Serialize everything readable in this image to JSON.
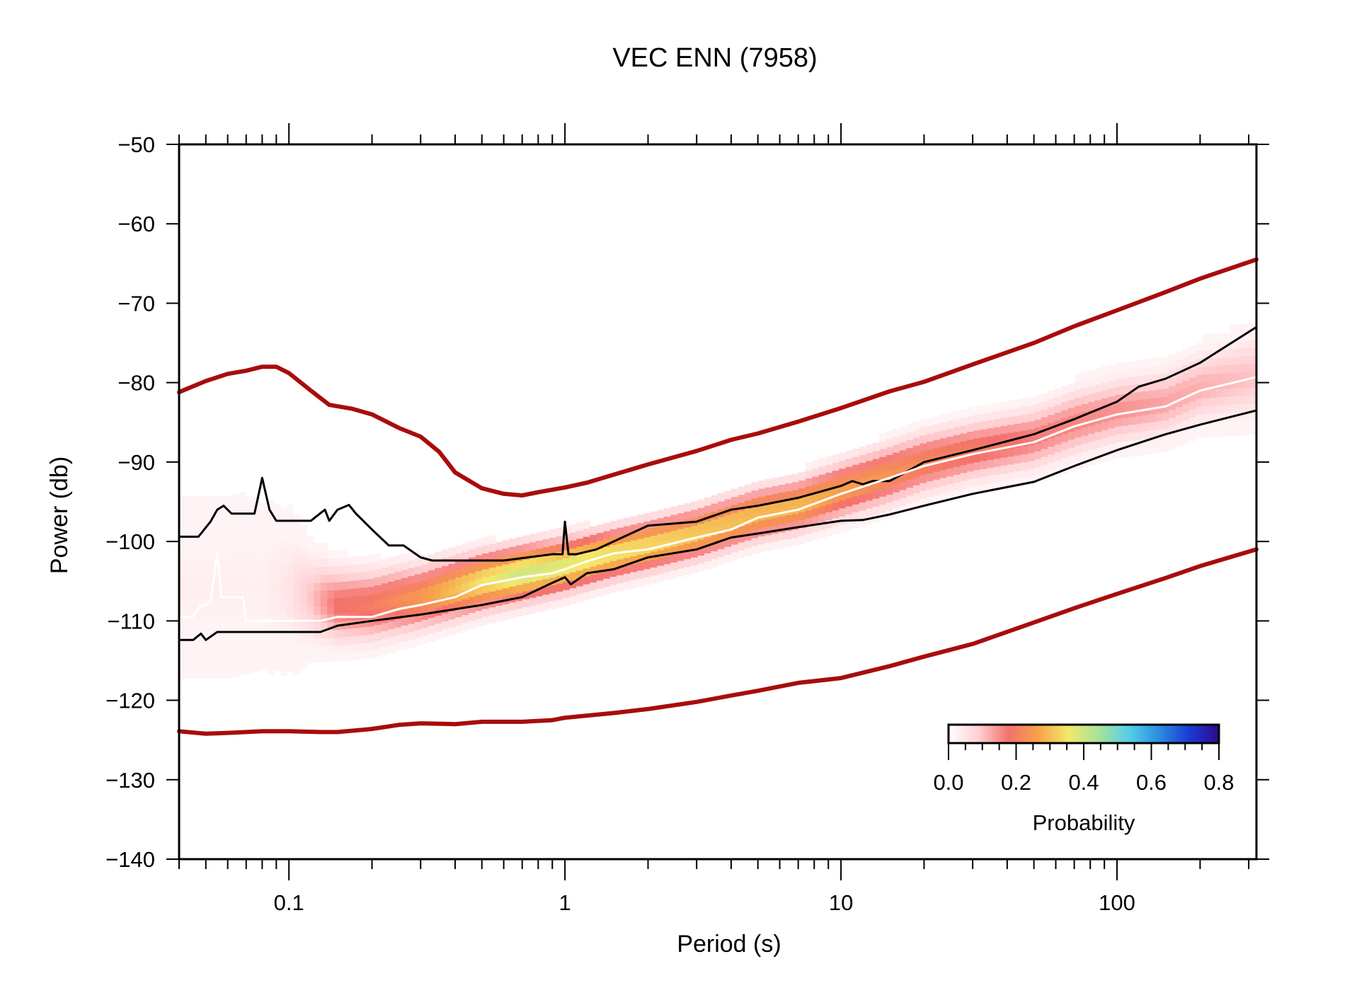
{
  "chart_data": {
    "type": "heatmap",
    "title": "VEC ENN (7958)",
    "xlabel": "Period (s)",
    "ylabel": "Power (db)",
    "xscale": "log",
    "xlim": [
      0.04,
      320
    ],
    "ylim": [
      -140,
      -50
    ],
    "x_ticks": [
      0.1,
      1,
      10,
      100
    ],
    "x_tick_labels": [
      "0.1",
      "1",
      "10",
      "100"
    ],
    "y_ticks": [
      -50,
      -60,
      -70,
      -80,
      -90,
      -100,
      -110,
      -120,
      -130,
      -140
    ],
    "y_tick_labels": [
      "−50",
      "−60",
      "−70",
      "−80",
      "−90",
      "−100",
      "−110",
      "−120",
      "−130",
      "−140"
    ],
    "grid": false,
    "colorbar": {
      "label": "Probability",
      "range": [
        0,
        0.8
      ],
      "ticks": [
        "0.0",
        "0.2",
        "0.4",
        "0.6",
        "0.8"
      ],
      "placement": "bottom-right",
      "colors": [
        "#ffffff",
        "#ffd0d4",
        "#f4716c",
        "#f7a34a",
        "#f4e86a",
        "#a6e39a",
        "#54cfe8",
        "#2b8de0",
        "#1b3bd4",
        "#2a0a8e"
      ]
    },
    "series": [
      {
        "role": "noise-model-high",
        "color": "#a80c0c",
        "x": [
          0.04,
          0.05,
          0.06,
          0.07,
          0.08,
          0.09,
          0.1,
          0.12,
          0.14,
          0.17,
          0.2,
          0.25,
          0.3,
          0.35,
          0.4,
          0.5,
          0.6,
          0.7,
          0.8,
          1,
          1.2,
          1.5,
          2,
          3,
          4,
          5,
          7,
          10,
          15,
          20,
          30,
          50,
          70,
          100,
          150,
          200,
          320
        ],
        "y": [
          -81.2,
          -79.8,
          -78.9,
          -78.5,
          -78.0,
          -78.0,
          -78.8,
          -81.0,
          -82.8,
          -83.3,
          -84.0,
          -85.7,
          -86.8,
          -88.7,
          -91.3,
          -93.3,
          -94.0,
          -94.2,
          -93.8,
          -93.2,
          -92.6,
          -91.6,
          -90.3,
          -88.6,
          -87.2,
          -86.4,
          -84.9,
          -83.2,
          -81.1,
          -79.9,
          -77.7,
          -75.0,
          -72.9,
          -70.9,
          -68.6,
          -66.9,
          -64.5
        ]
      },
      {
        "role": "noise-model-low",
        "color": "#a80c0c",
        "x": [
          0.04,
          0.05,
          0.06,
          0.08,
          0.1,
          0.13,
          0.15,
          0.2,
          0.25,
          0.3,
          0.4,
          0.5,
          0.7,
          0.9,
          1,
          1.5,
          2,
          3,
          4,
          5,
          7,
          10,
          15,
          20,
          30,
          50,
          70,
          100,
          150,
          200,
          320
        ],
        "y": [
          -123.9,
          -124.2,
          -124.1,
          -123.9,
          -123.9,
          -124.0,
          -124.0,
          -123.6,
          -123.1,
          -122.9,
          -123.0,
          -122.7,
          -122.7,
          -122.5,
          -122.2,
          -121.6,
          -121.1,
          -120.2,
          -119.4,
          -118.8,
          -117.8,
          -117.2,
          -115.7,
          -114.5,
          -112.9,
          -110.2,
          -108.4,
          -106.6,
          -104.6,
          -103.1,
          -101.0
        ]
      },
      {
        "role": "percentile-upper",
        "color": "#000000",
        "x": [
          0.04,
          0.047,
          0.052,
          0.055,
          0.058,
          0.062,
          0.066,
          0.075,
          0.08,
          0.085,
          0.09,
          0.1,
          0.12,
          0.135,
          0.14,
          0.15,
          0.165,
          0.175,
          0.2,
          0.23,
          0.26,
          0.3,
          0.33,
          0.35,
          0.6,
          0.9,
          0.98,
          1.0,
          1.03,
          1.1,
          1.3,
          1.5,
          2,
          3,
          4,
          5,
          7,
          10,
          11,
          12,
          13,
          15,
          20,
          30,
          50,
          70,
          100,
          120,
          150,
          200,
          320
        ],
        "y": [
          -99.4,
          -99.4,
          -97.5,
          -96.0,
          -95.5,
          -96.5,
          -96.5,
          -96.5,
          -92.0,
          -96.0,
          -97.4,
          -97.4,
          -97.4,
          -96.0,
          -97.4,
          -96.0,
          -95.4,
          -96.5,
          -98.5,
          -100.5,
          -100.5,
          -102.0,
          -102.4,
          -102.4,
          -102.4,
          -101.6,
          -101.6,
          -97.5,
          -101.6,
          -101.6,
          -101.0,
          -100.0,
          -98.0,
          -97.5,
          -96.0,
          -95.5,
          -94.5,
          -93.0,
          -92.4,
          -92.8,
          -92.4,
          -92.4,
          -90.0,
          -88.5,
          -86.5,
          -84.6,
          -82.4,
          -80.5,
          -79.5,
          -77.5,
          -73.0
        ]
      },
      {
        "role": "percentile-lower",
        "color": "#000000",
        "x": [
          0.04,
          0.045,
          0.048,
          0.05,
          0.055,
          0.06,
          0.07,
          0.08,
          0.1,
          0.13,
          0.15,
          0.2,
          0.3,
          0.5,
          0.7,
          0.9,
          1.0,
          1.05,
          1.2,
          1.5,
          2,
          3,
          4,
          5,
          7,
          10,
          12,
          15,
          20,
          30,
          50,
          70,
          100,
          150,
          200,
          320
        ],
        "y": [
          -112.4,
          -112.4,
          -111.6,
          -112.4,
          -111.4,
          -111.4,
          -111.4,
          -111.4,
          -111.4,
          -111.4,
          -110.6,
          -110.0,
          -109.2,
          -108.0,
          -107.0,
          -105.2,
          -104.5,
          -105.4,
          -104.0,
          -103.5,
          -102.0,
          -101.0,
          -99.5,
          -99.0,
          -98.2,
          -97.4,
          -97.3,
          -96.6,
          -95.5,
          -94.0,
          -92.5,
          -90.5,
          -88.5,
          -86.5,
          -85.3,
          -83.5
        ]
      },
      {
        "role": "mode",
        "color": "#ffffff",
        "x": [
          0.04,
          0.045,
          0.048,
          0.05,
          0.052,
          0.055,
          0.057,
          0.06,
          0.068,
          0.07,
          0.075,
          0.08,
          0.1,
          0.13,
          0.15,
          0.17,
          0.2,
          0.25,
          0.3,
          0.4,
          0.5,
          0.7,
          0.9,
          1.0,
          1.2,
          1.5,
          2,
          3,
          4,
          5,
          7,
          10,
          15,
          20,
          30,
          50,
          70,
          100,
          150,
          200,
          320
        ],
        "y": [
          -109.5,
          -109.5,
          -108.0,
          -108.0,
          -107.5,
          -101.5,
          -107.0,
          -107.0,
          -107.0,
          -110.0,
          -110.0,
          -110.0,
          -110.0,
          -110.0,
          -109.5,
          -109.5,
          -109.5,
          -108.5,
          -108.0,
          -107.0,
          -105.5,
          -104.5,
          -104.0,
          -103.5,
          -102.5,
          -101.5,
          -101.0,
          -99.5,
          -98.5,
          -97.0,
          -96.0,
          -94.0,
          -92.0,
          -90.5,
          -89.0,
          -87.5,
          -85.5,
          -84.0,
          -83.0,
          -81.0,
          -79.3
        ]
      }
    ],
    "density": {
      "x": [
        0.04,
        0.06,
        0.08,
        0.1,
        0.12,
        0.15,
        0.2,
        0.3,
        0.5,
        0.7,
        1,
        1.5,
        2,
        3,
        5,
        7,
        10,
        15,
        20,
        30,
        50,
        70,
        100,
        150,
        200,
        320
      ],
      "center": [
        -106.0,
        -106.0,
        -106.0,
        -106.5,
        -107.5,
        -108.5,
        -108.5,
        -107.5,
        -105.5,
        -104.5,
        -103.5,
        -102.0,
        -101.0,
        -99.5,
        -97.0,
        -96.0,
        -94.0,
        -92.0,
        -90.5,
        -89.0,
        -87.5,
        -85.5,
        -84.0,
        -83.0,
        -81.0,
        -79.5
      ],
      "spread_db": [
        6.5,
        6.5,
        6.0,
        5.0,
        3.5,
        3.0,
        2.8,
        2.5,
        2.3,
        2.2,
        2.1,
        2.0,
        2.0,
        2.0,
        2.0,
        2.0,
        2.2,
        2.3,
        2.3,
        2.3,
        2.4,
        2.5,
        2.5,
        2.6,
        2.7,
        3.2
      ],
      "peak_probability": [
        0.03,
        0.03,
        0.03,
        0.05,
        0.1,
        0.18,
        0.2,
        0.25,
        0.35,
        0.4,
        0.38,
        0.35,
        0.34,
        0.32,
        0.3,
        0.3,
        0.26,
        0.24,
        0.22,
        0.2,
        0.17,
        0.16,
        0.15,
        0.13,
        0.12,
        0.1
      ]
    }
  }
}
